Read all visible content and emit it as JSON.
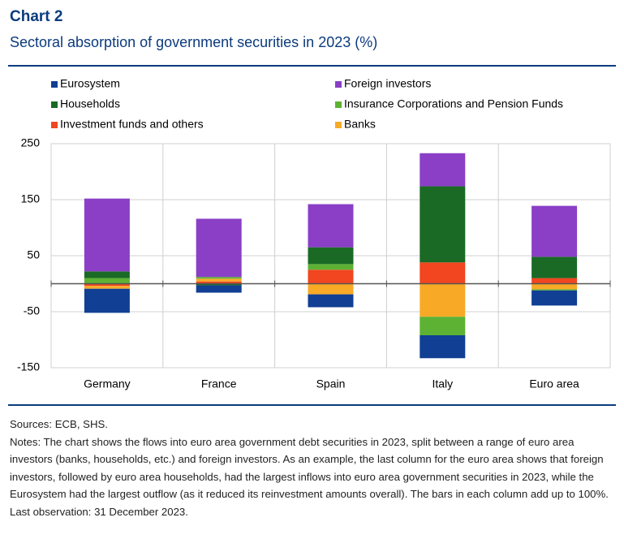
{
  "header": {
    "title": "Chart 2",
    "subtitle": "Sectoral absorption of government securities in 2023 (%)"
  },
  "chart_data": {
    "type": "stacked_bar",
    "categories": [
      "Germany",
      "France",
      "Spain",
      "Italy",
      "Euro area"
    ],
    "series": [
      {
        "name": "Eurosystem",
        "color": "#103f93",
        "values": [
          -43,
          -13,
          -23,
          -41,
          -27
        ]
      },
      {
        "name": "Foreign investors",
        "color": "#8a3fc6",
        "values": [
          130,
          104,
          77,
          59,
          91
        ]
      },
      {
        "name": "Households",
        "color": "#1a6a26",
        "values": [
          12,
          -3,
          30,
          136,
          38
        ]
      },
      {
        "name": "Insurance Corporations and Pension Funds",
        "color": "#5db233",
        "values": [
          10,
          3,
          10,
          -33,
          -2
        ]
      },
      {
        "name": "Investment funds and others",
        "color": "#f1461f",
        "values": [
          -4,
          4,
          25,
          38,
          10
        ]
      },
      {
        "name": "Banks",
        "color": "#f8aa27",
        "values": [
          -5,
          5,
          -19,
          -59,
          -10
        ]
      }
    ],
    "ylim": [
      -150,
      250
    ],
    "yticks": [
      -150,
      -50,
      50,
      150,
      250
    ]
  },
  "footer": {
    "sources": "Sources: ECB, SHS.",
    "notes": "Notes: The chart shows the flows into euro area government debt securities in 2023, split between a range of euro area investors (banks, households, etc.) and foreign investors. As an example, the last column for the euro area shows that foreign investors, followed by euro area households, had the largest inflows into euro area government securities in 2023, while the Eurosystem had the largest outflow (as it reduced its reinvestment amounts overall). The bars in each column add up to 100%. Last observation: 31 December 2023."
  }
}
